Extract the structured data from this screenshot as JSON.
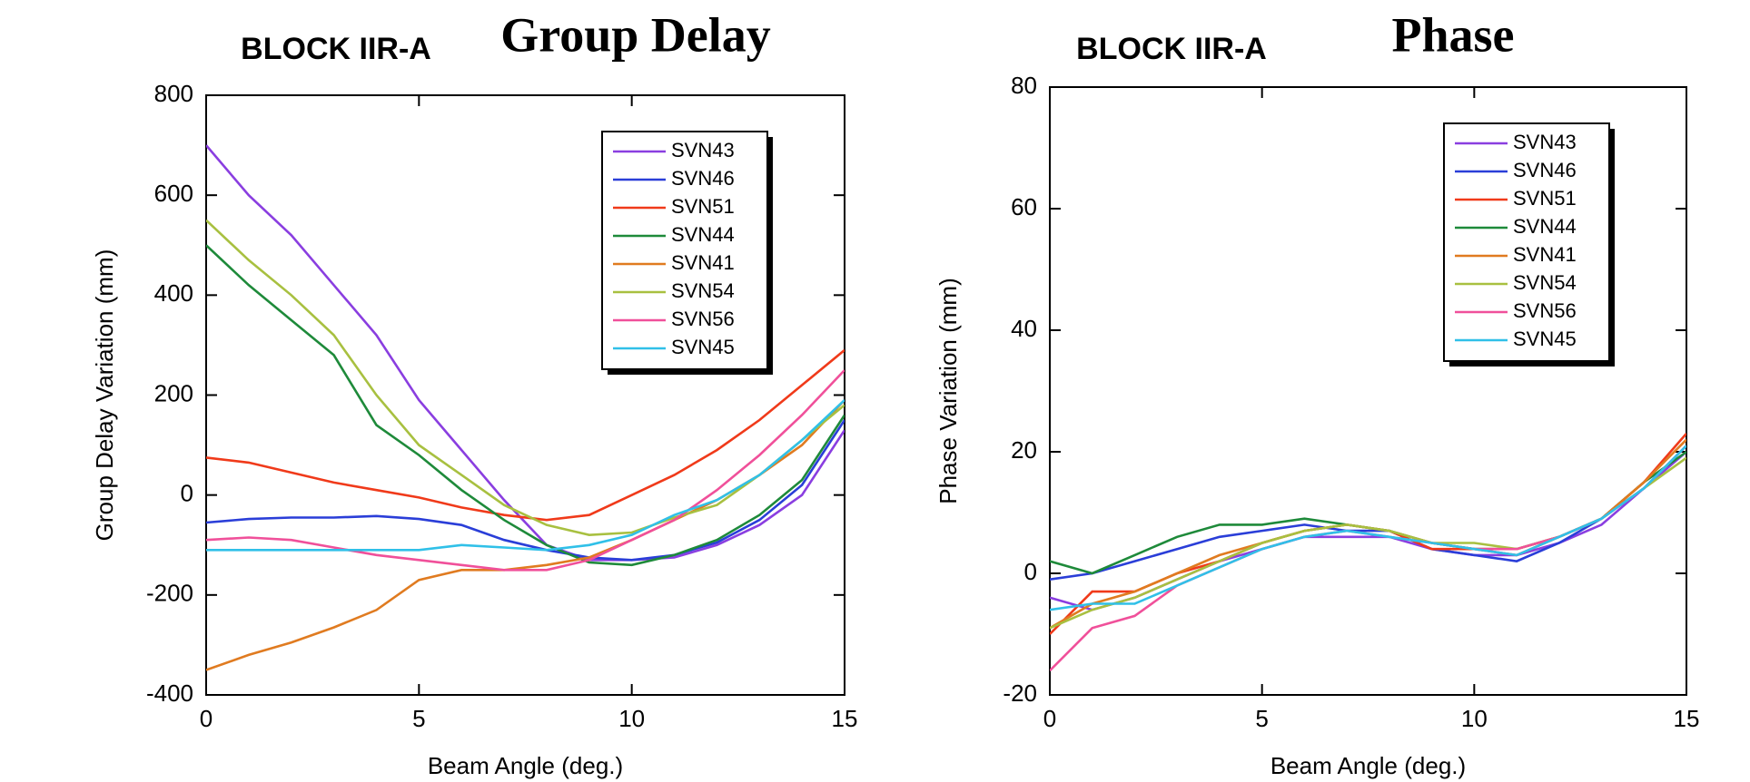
{
  "chart_data": [
    {
      "type": "line",
      "title": "Group Delay",
      "subtitle": "BLOCK IIR-A",
      "x_label": "Beam Angle (deg.)",
      "y_label": "Group Delay Variation (mm)",
      "x": [
        0,
        1,
        2,
        3,
        4,
        5,
        6,
        7,
        8,
        9,
        10,
        11,
        12,
        13,
        14,
        15
      ],
      "xlim": [
        0,
        15
      ],
      "xticks": [
        0,
        5,
        10,
        15
      ],
      "ylim": [
        -400,
        800
      ],
      "yticks": [
        -400,
        -200,
        0,
        200,
        400,
        600,
        800
      ],
      "legend": "upper right",
      "series": [
        {
          "name": "SVN43",
          "color": "#8a3ee0",
          "values": [
            700,
            600,
            520,
            420,
            320,
            190,
            90,
            -10,
            -100,
            -130,
            -130,
            -125,
            -100,
            -60,
            0,
            130
          ]
        },
        {
          "name": "SVN46",
          "color": "#2a3ed8",
          "values": [
            -55,
            -48,
            -45,
            -45,
            -42,
            -48,
            -60,
            -90,
            -110,
            -125,
            -130,
            -120,
            -95,
            -50,
            20,
            150
          ]
        },
        {
          "name": "SVN51",
          "color": "#f03a1a",
          "values": [
            75,
            65,
            45,
            25,
            10,
            -5,
            -25,
            -40,
            -50,
            -40,
            0,
            40,
            90,
            150,
            220,
            290
          ]
        },
        {
          "name": "SVN44",
          "color": "#1e8a3a",
          "values": [
            500,
            420,
            350,
            280,
            140,
            80,
            10,
            -50,
            -100,
            -135,
            -140,
            -120,
            -90,
            -40,
            30,
            160
          ]
        },
        {
          "name": "SVN41",
          "color": "#e07b20",
          "values": [
            -350,
            -320,
            -295,
            -265,
            -230,
            -170,
            -150,
            -150,
            -140,
            -125,
            -90,
            -50,
            -10,
            40,
            100,
            190
          ]
        },
        {
          "name": "SVN54",
          "color": "#a8c040",
          "values": [
            550,
            470,
            400,
            320,
            200,
            100,
            40,
            -20,
            -60,
            -80,
            -75,
            -45,
            -20,
            40,
            110,
            180
          ]
        },
        {
          "name": "SVN56",
          "color": "#f0509a",
          "values": [
            -90,
            -85,
            -90,
            -105,
            -120,
            -130,
            -140,
            -150,
            -150,
            -130,
            -90,
            -50,
            10,
            80,
            160,
            250
          ]
        },
        {
          "name": "SVN45",
          "color": "#30c0e8",
          "values": [
            -110,
            -110,
            -110,
            -110,
            -110,
            -110,
            -100,
            -105,
            -110,
            -100,
            -80,
            -40,
            -10,
            40,
            110,
            190
          ]
        }
      ]
    },
    {
      "type": "line",
      "title": "Phase",
      "subtitle": "BLOCK IIR-A",
      "x_label": "Beam Angle (deg.)",
      "y_label": "Phase Variation (mm)",
      "x": [
        0,
        1,
        2,
        3,
        4,
        5,
        6,
        7,
        8,
        9,
        10,
        11,
        12,
        13,
        14,
        15
      ],
      "xlim": [
        0,
        15
      ],
      "xticks": [
        0,
        5,
        10,
        15
      ],
      "ylim": [
        -20,
        80
      ],
      "yticks": [
        -20,
        0,
        20,
        40,
        60,
        80
      ],
      "legend": "upper right",
      "series": [
        {
          "name": "SVN43",
          "color": "#8a3ee0",
          "values": [
            -4,
            -6,
            -4,
            -1,
            2,
            4,
            6,
            6,
            6,
            4,
            3,
            3,
            5,
            8,
            14,
            20
          ]
        },
        {
          "name": "SVN46",
          "color": "#2a3ed8",
          "values": [
            -1,
            0,
            2,
            4,
            6,
            7,
            8,
            7,
            7,
            4,
            3,
            2,
            5,
            9,
            14,
            21
          ]
        },
        {
          "name": "SVN51",
          "color": "#f03a1a",
          "values": [
            -10,
            -3,
            -3,
            0,
            2,
            5,
            7,
            8,
            7,
            4,
            4,
            3,
            6,
            9,
            15,
            23
          ]
        },
        {
          "name": "SVN44",
          "color": "#1e8a3a",
          "values": [
            2,
            0,
            3,
            6,
            8,
            8,
            9,
            8,
            7,
            5,
            4,
            4,
            6,
            9,
            15,
            20
          ]
        },
        {
          "name": "SVN41",
          "color": "#e07b20",
          "values": [
            -9,
            -5,
            -3,
            0,
            3,
            5,
            7,
            8,
            7,
            5,
            4,
            4,
            6,
            9,
            15,
            22
          ]
        },
        {
          "name": "SVN54",
          "color": "#a8c040",
          "values": [
            -9,
            -6,
            -4,
            -1,
            2,
            5,
            7,
            8,
            7,
            5,
            5,
            4,
            6,
            9,
            14,
            19
          ]
        },
        {
          "name": "SVN56",
          "color": "#f0509a",
          "values": [
            -16,
            -9,
            -7,
            -2,
            1,
            4,
            6,
            7,
            6,
            5,
            4,
            4,
            6,
            9,
            14,
            21
          ]
        },
        {
          "name": "SVN45",
          "color": "#30c0e8",
          "values": [
            -6,
            -5,
            -5,
            -2,
            1,
            4,
            6,
            7,
            6,
            5,
            4,
            3,
            6,
            9,
            14,
            21
          ]
        }
      ]
    }
  ]
}
